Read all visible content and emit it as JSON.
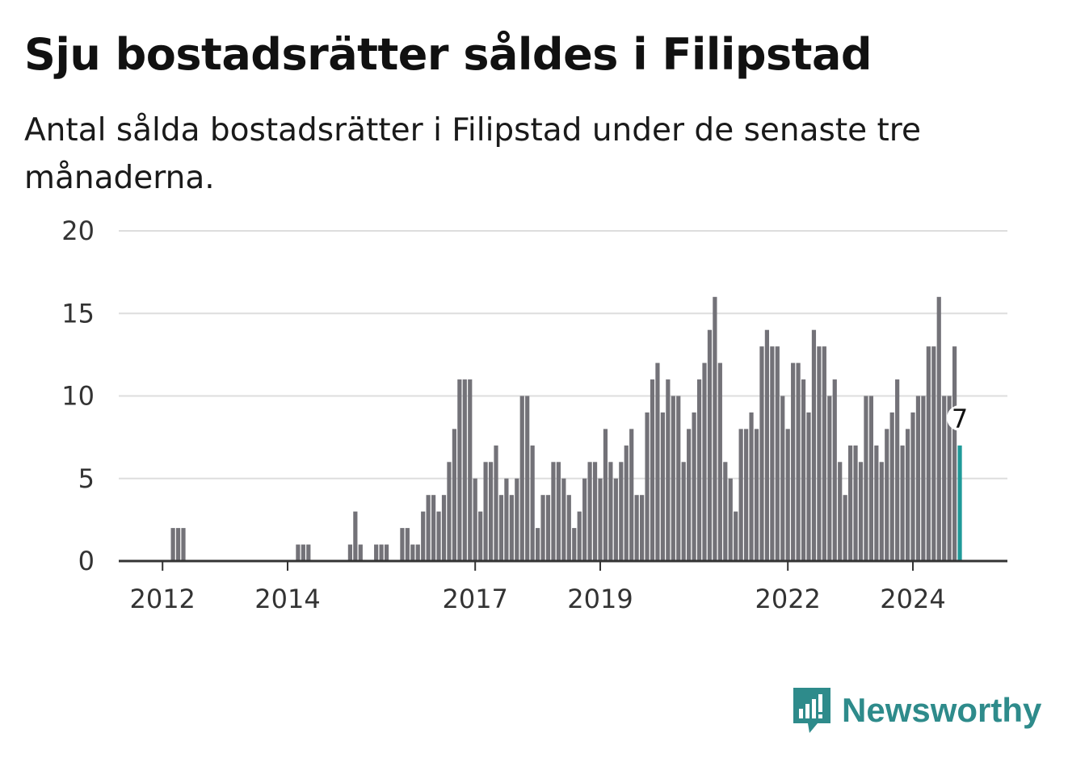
{
  "header": {
    "title": "Sju bostadsrätter såldes i Filipstad",
    "subtitle": "Antal sålda bostadsrätter i Filipstad under de senaste tre månaderna."
  },
  "brand": {
    "name": "Newsworthy",
    "icon": "newsworthy-logo-icon",
    "color": "#2e8b8b"
  },
  "colors": {
    "bar": "#737278",
    "highlight": "#1f9a99",
    "grid": "#dddddd",
    "axis": "#333333"
  },
  "chart_data": {
    "type": "bar",
    "title": "Sju bostadsrätter såldes i Filipstad",
    "subtitle": "Antal sålda bostadsrätter i Filipstad under de senaste tre månaderna.",
    "xlabel": "",
    "ylabel": "",
    "ylim": [
      0,
      20
    ],
    "yticks": [
      0,
      5,
      10,
      15,
      20
    ],
    "grid": true,
    "x_tick_labels": [
      "2012",
      "2014",
      "2017",
      "2019",
      "2022",
      "2024"
    ],
    "x_ticks": [
      {
        "label": "2012",
        "index": 8
      },
      {
        "label": "2014",
        "index": 32
      },
      {
        "label": "2017",
        "index": 68
      },
      {
        "label": "2019",
        "index": 92
      },
      {
        "label": "2022",
        "index": 128
      },
      {
        "label": "2024",
        "index": 152
      }
    ],
    "highlight": {
      "index": 161,
      "label": "7"
    },
    "values": [
      0,
      0,
      0,
      0,
      0,
      0,
      0,
      0,
      0,
      0,
      2,
      2,
      2,
      0,
      0,
      0,
      0,
      0,
      0,
      0,
      0,
      0,
      0,
      0,
      0,
      0,
      0,
      0,
      0,
      0,
      0,
      0,
      0,
      0,
      1,
      1,
      1,
      0,
      0,
      0,
      0,
      0,
      0,
      0,
      1,
      3,
      1,
      0,
      0,
      1,
      1,
      1,
      0,
      0,
      2,
      2,
      1,
      1,
      3,
      4,
      4,
      3,
      4,
      6,
      8,
      11,
      11,
      11,
      5,
      3,
      6,
      6,
      7,
      4,
      5,
      4,
      5,
      10,
      10,
      7,
      2,
      4,
      4,
      6,
      6,
      5,
      4,
      2,
      3,
      5,
      6,
      6,
      5,
      8,
      6,
      5,
      6,
      7,
      8,
      4,
      4,
      9,
      11,
      12,
      9,
      11,
      10,
      10,
      6,
      8,
      9,
      11,
      12,
      14,
      16,
      12,
      6,
      5,
      3,
      8,
      8,
      9,
      8,
      13,
      14,
      13,
      13,
      10,
      8,
      12,
      12,
      11,
      9,
      14,
      13,
      13,
      10,
      11,
      6,
      4,
      7,
      7,
      6,
      10,
      10,
      7,
      6,
      8,
      9,
      11,
      7,
      8,
      9,
      10,
      10,
      13,
      13,
      16,
      10,
      10,
      13,
      7
    ]
  }
}
